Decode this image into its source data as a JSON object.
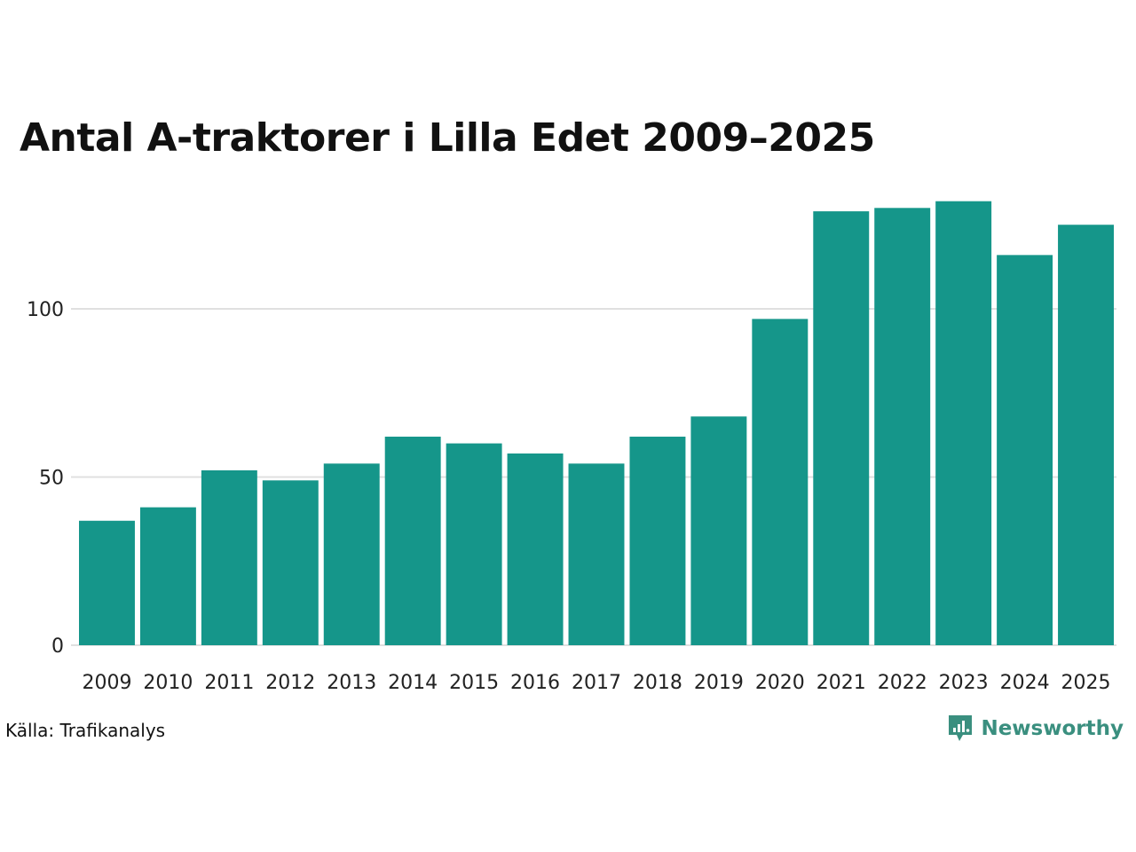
{
  "chart_data": {
    "type": "bar",
    "title": "Antal A-traktorer i Lilla Edet 2009–2025",
    "categories": [
      "2009",
      "2010",
      "2011",
      "2012",
      "2013",
      "2014",
      "2015",
      "2016",
      "2017",
      "2018",
      "2019",
      "2020",
      "2021",
      "2022",
      "2023",
      "2024",
      "2025"
    ],
    "values": [
      37,
      41,
      52,
      49,
      54,
      62,
      60,
      57,
      54,
      62,
      68,
      97,
      129,
      130,
      132,
      116,
      125
    ],
    "xlabel": "",
    "ylabel": "",
    "ylim": [
      0,
      140
    ],
    "yticks": [
      0,
      50,
      100
    ],
    "grid": true,
    "legend": "none"
  },
  "source": "Källa: Trafikanalys",
  "brand": {
    "name": "Newsworthy",
    "icon": "newsworthy-logo-icon"
  },
  "colors": {
    "bar": "#15968a",
    "grid": "#e0e0e0",
    "brand": "#3a8f7f"
  }
}
